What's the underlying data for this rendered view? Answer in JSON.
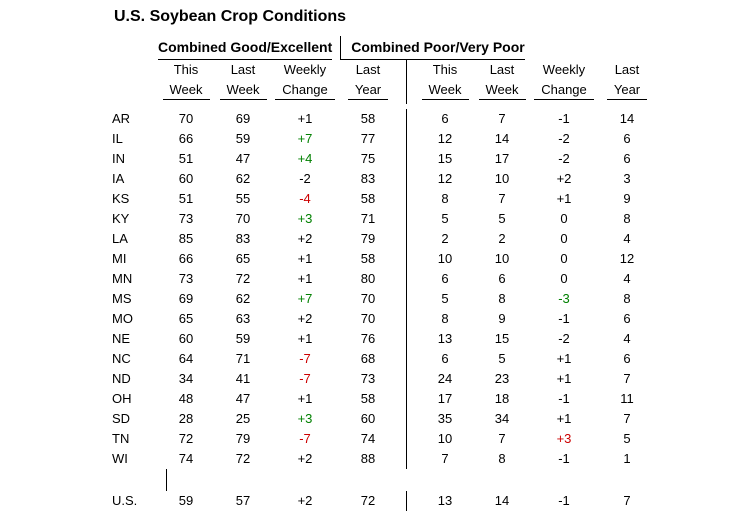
{
  "title": "U.S. Soybean Crop Conditions",
  "colors": {
    "black": "#000000",
    "green": "#008000",
    "red": "#cc0000",
    "line": "#000000"
  },
  "chart_data": {
    "type": "table",
    "title": "U.S. Soybean Crop Conditions",
    "section_headers": [
      "Combined Good/Excellent",
      "Combined Poor/Very Poor"
    ],
    "column_headers": [
      [
        "This",
        "Week"
      ],
      [
        "Last",
        "Week"
      ],
      [
        "Weekly",
        "Change"
      ],
      [
        "Last",
        "Year"
      ]
    ],
    "rows": [
      {
        "state": "AR",
        "ge": {
          "this_week": 70,
          "last_week": 69,
          "change": "+1",
          "change_color": "black",
          "last_year": 58
        },
        "pvp": {
          "this_week": 6,
          "last_week": 7,
          "change": "-1",
          "change_color": "black",
          "last_year": 14
        }
      },
      {
        "state": "IL",
        "ge": {
          "this_week": 66,
          "last_week": 59,
          "change": "+7",
          "change_color": "green",
          "last_year": 77
        },
        "pvp": {
          "this_week": 12,
          "last_week": 14,
          "change": "-2",
          "change_color": "black",
          "last_year": 6
        }
      },
      {
        "state": "IN",
        "ge": {
          "this_week": 51,
          "last_week": 47,
          "change": "+4",
          "change_color": "green",
          "last_year": 75
        },
        "pvp": {
          "this_week": 15,
          "last_week": 17,
          "change": "-2",
          "change_color": "black",
          "last_year": 6
        }
      },
      {
        "state": "IA",
        "ge": {
          "this_week": 60,
          "last_week": 62,
          "change": "-2",
          "change_color": "black",
          "last_year": 83
        },
        "pvp": {
          "this_week": 12,
          "last_week": 10,
          "change": "+2",
          "change_color": "black",
          "last_year": 3
        }
      },
      {
        "state": "KS",
        "ge": {
          "this_week": 51,
          "last_week": 55,
          "change": "-4",
          "change_color": "red",
          "last_year": 58
        },
        "pvp": {
          "this_week": 8,
          "last_week": 7,
          "change": "+1",
          "change_color": "black",
          "last_year": 9
        }
      },
      {
        "state": "KY",
        "ge": {
          "this_week": 73,
          "last_week": 70,
          "change": "+3",
          "change_color": "green",
          "last_year": 71
        },
        "pvp": {
          "this_week": 5,
          "last_week": 5,
          "change": "0",
          "change_color": "black",
          "last_year": 8
        }
      },
      {
        "state": "LA",
        "ge": {
          "this_week": 85,
          "last_week": 83,
          "change": "+2",
          "change_color": "black",
          "last_year": 79
        },
        "pvp": {
          "this_week": 2,
          "last_week": 2,
          "change": "0",
          "change_color": "black",
          "last_year": 4
        }
      },
      {
        "state": "MI",
        "ge": {
          "this_week": 66,
          "last_week": 65,
          "change": "+1",
          "change_color": "black",
          "last_year": 58
        },
        "pvp": {
          "this_week": 10,
          "last_week": 10,
          "change": "0",
          "change_color": "black",
          "last_year": 12
        }
      },
      {
        "state": "MN",
        "ge": {
          "this_week": 73,
          "last_week": 72,
          "change": "+1",
          "change_color": "black",
          "last_year": 80
        },
        "pvp": {
          "this_week": 6,
          "last_week": 6,
          "change": "0",
          "change_color": "black",
          "last_year": 4
        }
      },
      {
        "state": "MS",
        "ge": {
          "this_week": 69,
          "last_week": 62,
          "change": "+7",
          "change_color": "green",
          "last_year": 70
        },
        "pvp": {
          "this_week": 5,
          "last_week": 8,
          "change": "-3",
          "change_color": "green",
          "last_year": 8
        }
      },
      {
        "state": "MO",
        "ge": {
          "this_week": 65,
          "last_week": 63,
          "change": "+2",
          "change_color": "black",
          "last_year": 70
        },
        "pvp": {
          "this_week": 8,
          "last_week": 9,
          "change": "-1",
          "change_color": "black",
          "last_year": 6
        }
      },
      {
        "state": "NE",
        "ge": {
          "this_week": 60,
          "last_week": 59,
          "change": "+1",
          "change_color": "black",
          "last_year": 76
        },
        "pvp": {
          "this_week": 13,
          "last_week": 15,
          "change": "-2",
          "change_color": "black",
          "last_year": 4
        }
      },
      {
        "state": "NC",
        "ge": {
          "this_week": 64,
          "last_week": 71,
          "change": "-7",
          "change_color": "red",
          "last_year": 68
        },
        "pvp": {
          "this_week": 6,
          "last_week": 5,
          "change": "+1",
          "change_color": "black",
          "last_year": 6
        }
      },
      {
        "state": "ND",
        "ge": {
          "this_week": 34,
          "last_week": 41,
          "change": "-7",
          "change_color": "red",
          "last_year": 73
        },
        "pvp": {
          "this_week": 24,
          "last_week": 23,
          "change": "+1",
          "change_color": "black",
          "last_year": 7
        }
      },
      {
        "state": "OH",
        "ge": {
          "this_week": 48,
          "last_week": 47,
          "change": "+1",
          "change_color": "black",
          "last_year": 58
        },
        "pvp": {
          "this_week": 17,
          "last_week": 18,
          "change": "-1",
          "change_color": "black",
          "last_year": 11
        }
      },
      {
        "state": "SD",
        "ge": {
          "this_week": 28,
          "last_week": 25,
          "change": "+3",
          "change_color": "green",
          "last_year": 60
        },
        "pvp": {
          "this_week": 35,
          "last_week": 34,
          "change": "+1",
          "change_color": "black",
          "last_year": 7
        }
      },
      {
        "state": "TN",
        "ge": {
          "this_week": 72,
          "last_week": 79,
          "change": "-7",
          "change_color": "red",
          "last_year": 74
        },
        "pvp": {
          "this_week": 10,
          "last_week": 7,
          "change": "+3",
          "change_color": "red",
          "last_year": 5
        }
      },
      {
        "state": "WI",
        "ge": {
          "this_week": 74,
          "last_week": 72,
          "change": "+2",
          "change_color": "black",
          "last_year": 88
        },
        "pvp": {
          "this_week": 7,
          "last_week": 8,
          "change": "-1",
          "change_color": "black",
          "last_year": 1
        }
      }
    ],
    "total_row": {
      "state": "U.S.",
      "ge": {
        "this_week": 59,
        "last_week": 57,
        "change": "+2",
        "change_color": "black",
        "last_year": 72
      },
      "pvp": {
        "this_week": 13,
        "last_week": 14,
        "change": "-1",
        "change_color": "black",
        "last_year": 7
      }
    }
  }
}
